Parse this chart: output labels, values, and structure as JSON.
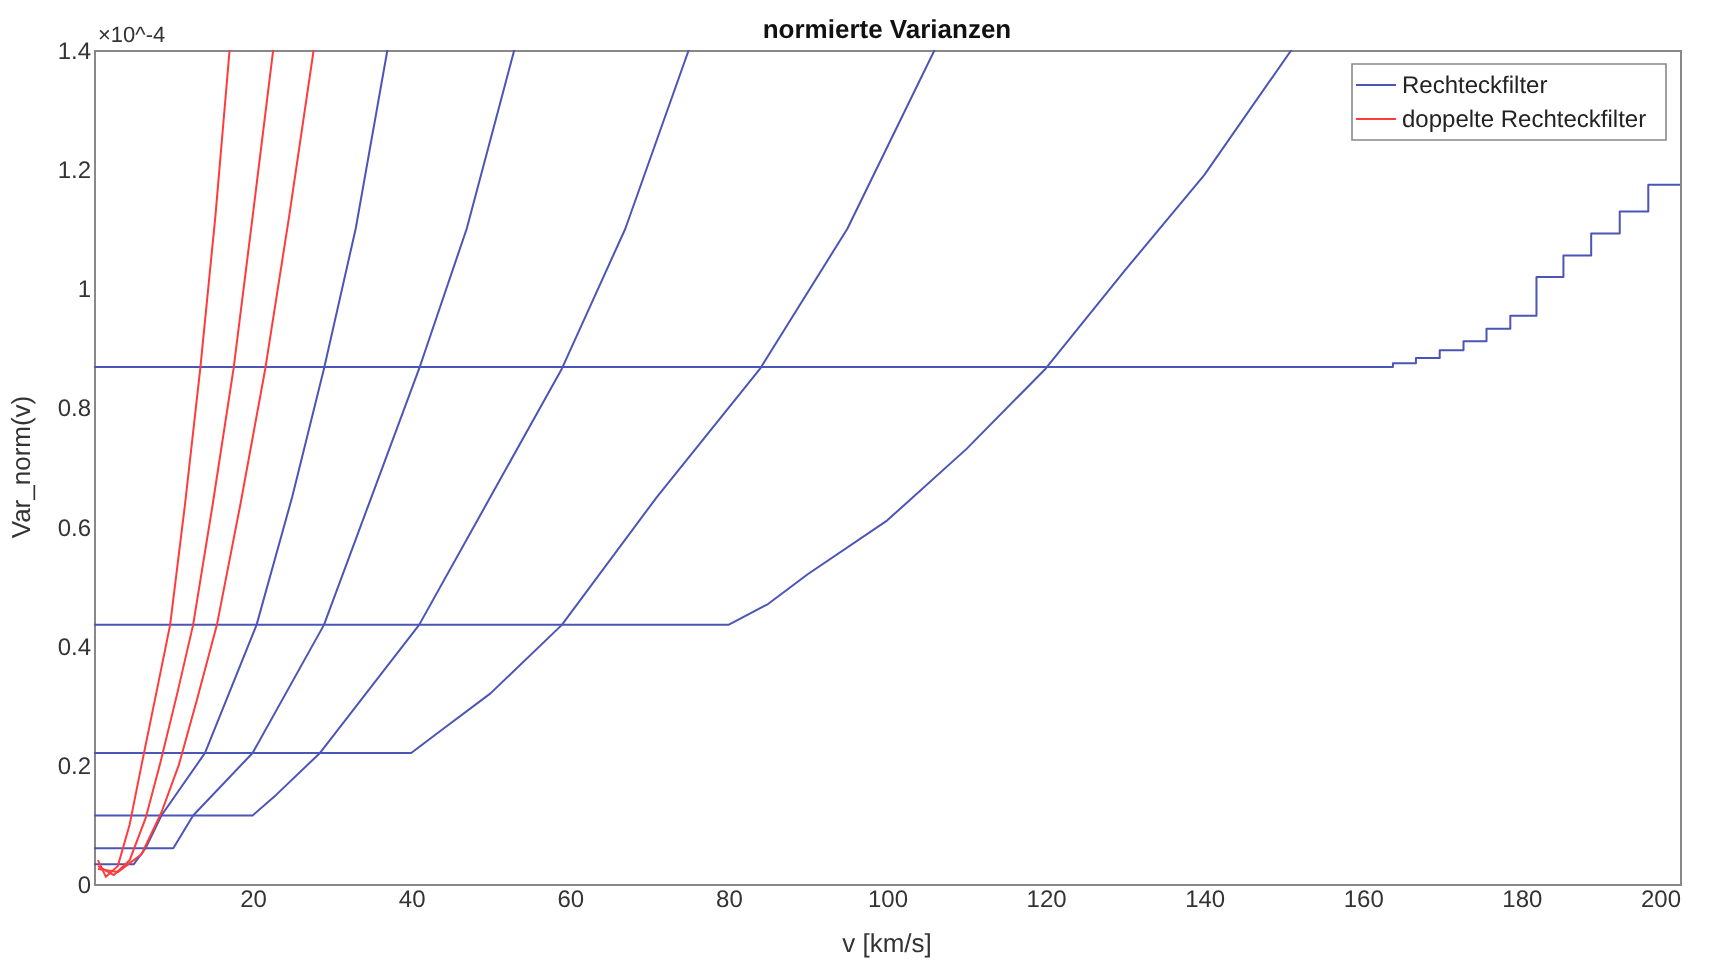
{
  "chart_data": {
    "type": "line",
    "title": "normierte Varianzen",
    "xlabel": "v [km/s]",
    "ylabel": "Var_norm(v)",
    "annotations": [
      "×10^-4"
    ],
    "xlim": [
      0,
      200
    ],
    "xticks": [
      20,
      40,
      60,
      80,
      100,
      120,
      140,
      160,
      180,
      200
    ],
    "ylim": [
      0,
      1.4
    ],
    "yticks": [
      0,
      0.2,
      0.4,
      0.6,
      0.8,
      1,
      1.2,
      1.4
    ],
    "grid": false,
    "legend": "top right",
    "marker": "none",
    "line_style": "solid",
    "series": [
      {
        "name": "Rechteckfilter",
        "color": "#4b55b5",
        "x": [
          0,
          5,
          6.5,
          8.5,
          14,
          20.5,
          25,
          29,
          33,
          37
        ],
        "values": [
          0.033,
          0.033,
          0.06,
          0.115,
          0.22,
          0.435,
          0.65,
          0.865,
          1.1,
          1.4
        ]
      },
      {
        "color": "#4b55b5",
        "x": [
          0,
          10,
          12.5,
          20,
          29,
          35,
          41,
          47,
          53
        ],
        "values": [
          0.06,
          0.06,
          0.115,
          0.22,
          0.435,
          0.65,
          0.865,
          1.1,
          1.4
        ]
      },
      {
        "color": "#4b55b5",
        "x": [
          0,
          20,
          23,
          28.5,
          41,
          50,
          59,
          67,
          75
        ],
        "values": [
          0.115,
          0.115,
          0.15,
          0.22,
          0.435,
          0.65,
          0.865,
          1.1,
          1.4
        ]
      },
      {
        "color": "#4b55b5",
        "x": [
          0,
          40,
          43,
          50,
          59,
          71,
          84,
          95,
          106
        ],
        "values": [
          0.22,
          0.22,
          0.25,
          0.32,
          0.435,
          0.65,
          0.865,
          1.1,
          1.4
        ]
      },
      {
        "color": "#4b55b5",
        "x": [
          0,
          80,
          85,
          90,
          100,
          110,
          120,
          130,
          140,
          151
        ],
        "values": [
          0.435,
          0.435,
          0.47,
          0.52,
          0.61,
          0.73,
          0.865,
          1.03,
          1.19,
          1.4
        ]
      },
      {
        "type": "step",
        "color": "#4b55b5",
        "x": [
          0,
          163.8,
          166.7,
          169.7,
          172.7,
          175.6,
          178.6,
          181.9,
          185.3,
          188.8,
          192.4,
          196,
          200
        ],
        "values": [
          0.868,
          0.874,
          0.883,
          0.896,
          0.911,
          0.932,
          0.954,
          1.019,
          1.055,
          1.092,
          1.129,
          1.174,
          1.174
        ]
      },
      {
        "name": "doppelte Rechteckfilter",
        "color": "#ff3b3b",
        "x": [
          0.5,
          1.5,
          3,
          4.5,
          6,
          8,
          9.6,
          11.5,
          13.4,
          15.3,
          17.1
        ],
        "values": [
          0.04,
          0.012,
          0.03,
          0.1,
          0.2,
          0.33,
          0.435,
          0.64,
          0.865,
          1.12,
          1.4
        ]
      },
      {
        "color": "#ff3b3b",
        "x": [
          0.5,
          2.5,
          4.5,
          6.5,
          8.3,
          10.5,
          12.5,
          15,
          17.6,
          20,
          22.6
        ],
        "values": [
          0.03,
          0.015,
          0.04,
          0.11,
          0.2,
          0.32,
          0.435,
          0.64,
          0.865,
          1.12,
          1.4
        ]
      },
      {
        "color": "#ff3b3b",
        "x": [
          0.5,
          3,
          6,
          8.5,
          10.7,
          13,
          15.5,
          18.5,
          21.6,
          24.6,
          27.7
        ],
        "values": [
          0.025,
          0.02,
          0.05,
          0.12,
          0.2,
          0.31,
          0.435,
          0.64,
          0.865,
          1.12,
          1.4
        ]
      }
    ]
  }
}
